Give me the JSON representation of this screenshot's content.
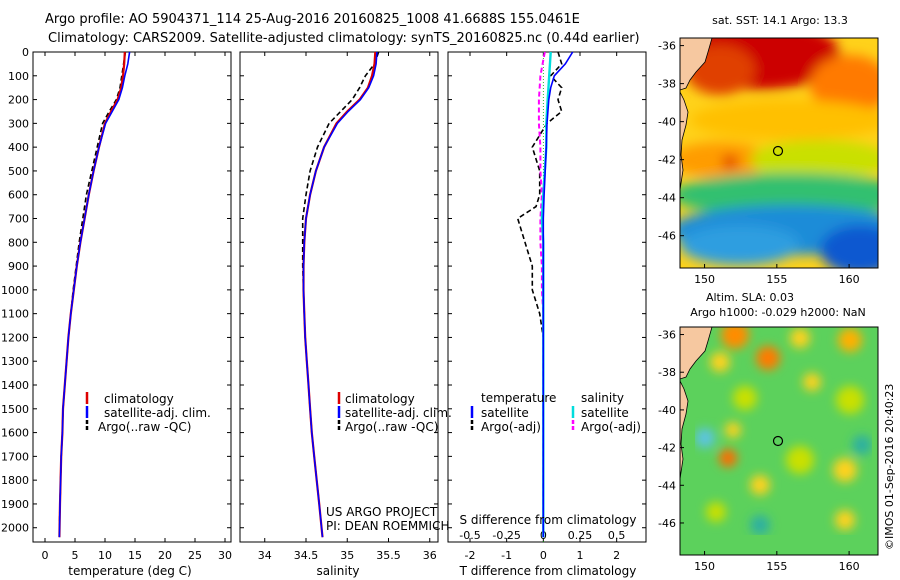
{
  "header": {
    "line1": "Argo profile: AO 5904371_114 25-Aug-2016 20160825_1008 41.6688S 155.0461E",
    "line2": "Climatology: CARS2009. Satellite-adjusted climatology: synTS_20160825.nc (0.44d earlier)"
  },
  "depth_ticks": [
    "0",
    "100",
    "200",
    "300",
    "400",
    "500",
    "600",
    "700",
    "800",
    "900",
    "1000",
    "1100",
    "1200",
    "1300",
    "1400",
    "1500",
    "1600",
    "1700",
    "1800",
    "1900",
    "2000"
  ],
  "colors": {
    "clim": "#dd0000",
    "sat": "#0000ff",
    "argo": "#000000",
    "sat_sal": "#00dddd",
    "argo_sal": "#ff00ff"
  },
  "chart_data": [
    {
      "type": "line",
      "id": "temperature_profile",
      "xlabel": "temperature (deg C)",
      "ylabel": "depth",
      "xlim": [
        -2,
        31
      ],
      "ylim": [
        2060,
        0
      ],
      "xticks": [
        0,
        5,
        10,
        15,
        20,
        25,
        30
      ],
      "legend": [
        "climatology",
        "satellite-adj. clim.",
        "Argo(..raw -QC)"
      ],
      "series": [
        {
          "name": "climatology",
          "x": [
            13.3,
            13.2,
            13.0,
            12.7,
            12.1,
            11.0,
            10.0,
            9.0,
            8.1,
            7.3,
            6.6,
            5.9,
            5.3,
            4.8,
            4.3,
            3.9,
            3.6,
            3.3,
            3.0,
            2.9,
            2.7,
            2.6,
            2.5,
            2.4
          ],
          "y": [
            0,
            50,
            100,
            150,
            200,
            250,
            300,
            400,
            500,
            600,
            700,
            800,
            900,
            1000,
            1100,
            1200,
            1300,
            1400,
            1500,
            1600,
            1700,
            1800,
            1900,
            2040
          ]
        },
        {
          "name": "satellite-adj. clim.",
          "x": [
            14.1,
            13.8,
            13.3,
            12.9,
            12.3,
            11.2,
            10.1,
            9.0,
            8.1,
            7.3,
            6.6,
            5.9,
            5.3,
            4.8,
            4.3,
            3.9,
            3.6,
            3.3,
            3.0,
            2.9,
            2.7,
            2.6,
            2.5,
            2.4
          ],
          "y": [
            0,
            50,
            100,
            150,
            200,
            250,
            300,
            400,
            500,
            600,
            700,
            800,
            900,
            1000,
            1100,
            1200,
            1300,
            1400,
            1500,
            1600,
            1700,
            1800,
            1900,
            2040
          ]
        },
        {
          "name": "Argo(..raw -QC)",
          "x": [
            13.4,
            13.1,
            12.8,
            12.5,
            11.9,
            10.7,
            9.6,
            8.7,
            7.8,
            6.9,
            6.3,
            5.7,
            5.2,
            4.7,
            4.3,
            3.9,
            3.6,
            3.3,
            3.0,
            2.9,
            2.7,
            2.6,
            2.5,
            2.4
          ],
          "y": [
            0,
            50,
            100,
            150,
            200,
            250,
            300,
            400,
            500,
            600,
            700,
            800,
            900,
            1000,
            1100,
            1200,
            1300,
            1400,
            1500,
            1600,
            1700,
            1800,
            1900,
            2000
          ]
        }
      ]
    },
    {
      "type": "line",
      "id": "salinity_profile",
      "xlabel": "salinity",
      "xlim": [
        33.7,
        36.1
      ],
      "ylim": [
        2060,
        0
      ],
      "xticks": [
        34,
        34.5,
        35,
        35.5,
        36
      ],
      "legend": [
        "climatology",
        "satellite-adj. clim.",
        "Argo(..raw -QC)"
      ],
      "credit": [
        "US ARGO PROJECT",
        "PI: DEAN ROEMMICH"
      ],
      "series": [
        {
          "name": "climatology",
          "x": [
            35.34,
            35.33,
            35.3,
            35.25,
            35.15,
            35.0,
            34.87,
            34.72,
            34.62,
            34.55,
            34.5,
            34.48,
            34.47,
            34.47,
            34.48,
            34.49,
            34.51,
            34.53,
            34.55,
            34.57,
            34.6,
            34.63,
            34.66,
            34.7
          ],
          "y": [
            0,
            50,
            100,
            150,
            200,
            250,
            300,
            400,
            500,
            600,
            700,
            800,
            900,
            1000,
            1100,
            1200,
            1300,
            1400,
            1500,
            1600,
            1700,
            1800,
            1900,
            2040
          ]
        },
        {
          "name": "satellite-adj. clim.",
          "x": [
            35.36,
            35.35,
            35.32,
            35.26,
            35.16,
            35.01,
            34.88,
            34.72,
            34.62,
            34.55,
            34.5,
            34.48,
            34.47,
            34.47,
            34.48,
            34.49,
            34.51,
            34.53,
            34.55,
            34.57,
            34.6,
            34.63,
            34.66,
            34.7
          ],
          "y": [
            0,
            50,
            100,
            150,
            200,
            250,
            300,
            400,
            500,
            600,
            700,
            800,
            900,
            1000,
            1100,
            1200,
            1300,
            1400,
            1500,
            1600,
            1700,
            1800,
            1900,
            2040
          ]
        },
        {
          "name": "Argo(..raw -QC)",
          "x": [
            35.38,
            35.33,
            35.22,
            35.15,
            35.06,
            34.92,
            34.78,
            34.64,
            34.55,
            34.5,
            34.46,
            34.46,
            34.46,
            34.47,
            34.48,
            34.49,
            34.51,
            34.53,
            34.55,
            34.57,
            34.6,
            34.63,
            34.66
          ],
          "y": [
            0,
            50,
            100,
            150,
            200,
            250,
            300,
            400,
            500,
            600,
            700,
            800,
            900,
            1000,
            1100,
            1200,
            1300,
            1400,
            1500,
            1600,
            1700,
            1800,
            1900
          ]
        }
      ]
    },
    {
      "type": "line",
      "id": "difference_profile",
      "xlabel": "T difference from climatology",
      "xlabel_top": "S difference from climatology",
      "xlim": [
        -2.6,
        2.8
      ],
      "ylim": [
        2060,
        0
      ],
      "xticks": [
        -2,
        -1,
        0,
        1,
        2
      ],
      "xticks_s": [
        -0.5,
        -0.25,
        0,
        0.25,
        0.5
      ],
      "legend_left_title": "temperature",
      "legend_right_title": "salinity",
      "legend": [
        "satellite",
        "Argo(-adj)",
        "satellite",
        "Argo(-adj)"
      ],
      "series": [
        {
          "name": "T satellite",
          "x": [
            0.8,
            0.6,
            0.3,
            0.2,
            0.15,
            0.1,
            0.08,
            0.05,
            0.02,
            0.0,
            0.0,
            0.0,
            0.0,
            0.0,
            0.0,
            0.0,
            0.0,
            0.0,
            0.0,
            0.0
          ],
          "y": [
            0,
            50,
            100,
            150,
            200,
            300,
            400,
            500,
            600,
            700,
            800,
            900,
            1000,
            1200,
            1400,
            1600,
            1800,
            1900,
            2000,
            2040
          ]
        },
        {
          "name": "T Argo(-adj)",
          "x": [
            0.4,
            0.5,
            0.2,
            0.5,
            0.4,
            0.5,
            0.1,
            -0.3,
            -0.1,
            -0.1,
            -0.2,
            -0.7,
            -0.5,
            -0.3,
            -0.3,
            -0.1,
            0.0,
            0.0,
            0.0,
            0.0,
            0.0
          ],
          "y": [
            0,
            50,
            100,
            150,
            200,
            250,
            300,
            400,
            500,
            600,
            650,
            700,
            800,
            900,
            1000,
            1100,
            1200,
            1400,
            1600,
            1800,
            2000
          ]
        },
        {
          "name": "S satellite",
          "x": [
            0.05,
            0.04,
            0.03,
            0.02,
            0.02,
            0.01,
            0.0,
            -0.01,
            0.0,
            0.0,
            0.0,
            0.0,
            0.0,
            0.0,
            0.0
          ],
          "y": [
            0,
            100,
            200,
            300,
            400,
            500,
            600,
            700,
            800,
            1000,
            1200,
            1400,
            1600,
            1800,
            2040
          ]
        },
        {
          "name": "S Argo(-adj)",
          "x": [
            0.01,
            -0.02,
            -0.03,
            -0.03,
            -0.02,
            -0.02,
            -0.01,
            -0.02,
            -0.02,
            -0.01,
            -0.01,
            0.0,
            0.0,
            0.0,
            0.0,
            0.0
          ],
          "y": [
            0,
            100,
            200,
            300,
            400,
            500,
            600,
            700,
            800,
            900,
            1000,
            1100,
            1200,
            1400,
            1600,
            2000
          ]
        }
      ]
    },
    {
      "type": "heatmap",
      "id": "sst_map",
      "title": "sat. SST: 14.1  Argo: 13.3",
      "xticks": [
        150,
        155,
        160
      ],
      "yticks": [
        -36,
        -38,
        -40,
        -42,
        -44,
        -46
      ],
      "marker": {
        "lon": 155.05,
        "lat": -41.67
      }
    },
    {
      "type": "heatmap",
      "id": "sla_map",
      "title_line1": "Altim. SLA: 0.03",
      "title_line2": "Argo h1000: -0.029 h2000: NaN",
      "xticks": [
        150,
        155,
        160
      ],
      "yticks": [
        -36,
        -38,
        -40,
        -42,
        -44,
        -46
      ],
      "marker": {
        "lon": 155.05,
        "lat": -41.67
      }
    }
  ],
  "footer": {
    "credit": "©IMOS 01-Sep-2016 20:40:23"
  }
}
